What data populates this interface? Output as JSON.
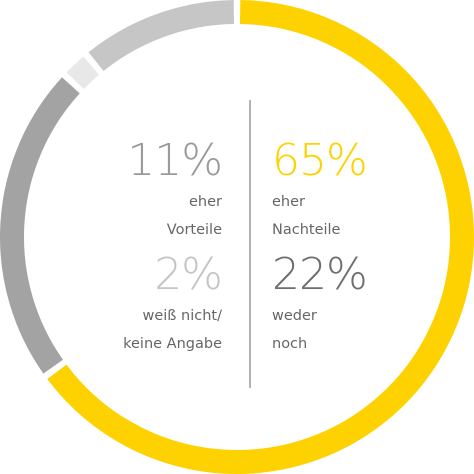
{
  "chart_data": {
    "type": "donut",
    "categories": [
      "eher\nNachteile",
      "weder\nnoch",
      "weiß nicht/\nkeine Angabe",
      "eher\nVorteile"
    ],
    "values": [
      65,
      22,
      2,
      11
    ],
    "value_labels": [
      "65%",
      "22%",
      "2%",
      "11%"
    ],
    "colors": [
      "#fdd200",
      "#a3a3a3",
      "#e8e8e8",
      "#c6c6c6"
    ],
    "label_colors": [
      "#fdd200",
      "#6e6e6e",
      "#c4c4c4",
      "#9a9a9a"
    ]
  }
}
